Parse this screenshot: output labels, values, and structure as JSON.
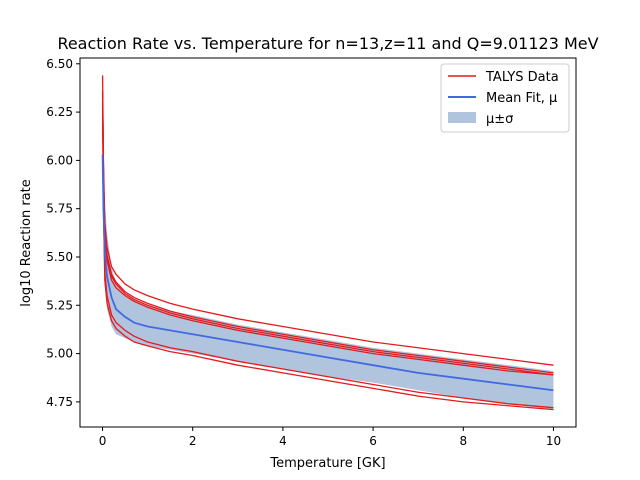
{
  "chart_data": {
    "type": "line",
    "title": "Reaction Rate vs. Temperature for n=13,z=11 and Q=9.01123 MeV",
    "xlabel": "Temperature [GK]",
    "ylabel": "log10 Reaction rate",
    "xlim": [
      -0.5,
      10.5
    ],
    "ylim": [
      4.62,
      6.53
    ],
    "xticks": [
      0,
      2,
      4,
      6,
      8,
      10
    ],
    "xtick_labels": [
      "0",
      "2",
      "4",
      "6",
      "8",
      "10"
    ],
    "yticks": [
      4.75,
      5.0,
      5.25,
      5.5,
      5.75,
      6.0,
      6.25,
      6.5
    ],
    "ytick_labels": [
      "4.75",
      "5.00",
      "5.25",
      "5.50",
      "5.75",
      "6.00",
      "6.25",
      "6.50"
    ],
    "grid": false,
    "legend_position": "top-right",
    "legend": [
      {
        "label": "TALYS Data",
        "kind": "line",
        "color": "#e41a1c"
      },
      {
        "label": "Mean Fit, μ",
        "kind": "line",
        "color": "#4169e1"
      },
      {
        "label": "μ±σ",
        "kind": "patch",
        "color": "#b0c4de"
      }
    ],
    "talys_series": [
      {
        "name": "TALYS Data 1",
        "x": [
          0.001,
          0.02,
          0.05,
          0.1,
          0.2,
          0.3,
          0.5,
          0.7,
          1,
          1.5,
          2,
          3,
          4,
          5,
          6,
          7,
          8,
          9,
          10
        ],
        "y": [
          6.44,
          6.0,
          5.68,
          5.55,
          5.45,
          5.41,
          5.36,
          5.33,
          5.3,
          5.26,
          5.23,
          5.18,
          5.14,
          5.1,
          5.06,
          5.03,
          5.0,
          4.97,
          4.94
        ]
      },
      {
        "name": "TALYS Data 2",
        "x": [
          0.001,
          0.02,
          0.05,
          0.1,
          0.2,
          0.3,
          0.5,
          0.7,
          1,
          1.5,
          2,
          3,
          4,
          5,
          6,
          7,
          8,
          9,
          10
        ],
        "y": [
          6.36,
          5.95,
          5.63,
          5.51,
          5.41,
          5.37,
          5.32,
          5.29,
          5.26,
          5.22,
          5.19,
          5.14,
          5.1,
          5.06,
          5.02,
          4.99,
          4.96,
          4.93,
          4.9
        ]
      },
      {
        "name": "TALYS Data 3",
        "x": [
          0.001,
          0.02,
          0.05,
          0.1,
          0.2,
          0.3,
          0.5,
          0.7,
          1,
          1.5,
          2,
          3,
          4,
          5,
          6,
          7,
          8,
          9,
          10
        ],
        "y": [
          6.34,
          5.94,
          5.62,
          5.5,
          5.4,
          5.36,
          5.31,
          5.28,
          5.25,
          5.21,
          5.18,
          5.13,
          5.09,
          5.05,
          5.01,
          4.98,
          4.95,
          4.92,
          4.89
        ]
      },
      {
        "name": "TALYS Data 4",
        "x": [
          0.001,
          0.02,
          0.05,
          0.1,
          0.2,
          0.3,
          0.5,
          0.7,
          1,
          1.5,
          2,
          3,
          4,
          5,
          6,
          7,
          8,
          9,
          10
        ],
        "y": [
          6.35,
          5.92,
          5.6,
          5.48,
          5.38,
          5.34,
          5.3,
          5.27,
          5.24,
          5.2,
          5.17,
          5.12,
          5.08,
          5.04,
          5.0,
          4.97,
          4.94,
          4.91,
          4.89
        ]
      },
      {
        "name": "TALYS Data 5",
        "x": [
          0.001,
          0.02,
          0.05,
          0.1,
          0.2,
          0.3,
          0.5,
          0.7,
          1,
          1.5,
          2,
          3,
          4,
          5,
          6,
          7,
          8,
          9,
          10
        ],
        "y": [
          6.3,
          5.8,
          5.42,
          5.3,
          5.2,
          5.16,
          5.12,
          5.09,
          5.06,
          5.03,
          5.01,
          4.96,
          4.92,
          4.88,
          4.84,
          4.8,
          4.77,
          4.74,
          4.72
        ]
      },
      {
        "name": "TALYS Data 6",
        "x": [
          0.001,
          0.02,
          0.05,
          0.1,
          0.2,
          0.3,
          0.5,
          0.7,
          1,
          1.5,
          2,
          3,
          4,
          5,
          6,
          7,
          8,
          9,
          10
        ],
        "y": [
          6.28,
          5.76,
          5.38,
          5.26,
          5.17,
          5.13,
          5.09,
          5.06,
          5.04,
          5.01,
          4.99,
          4.94,
          4.9,
          4.86,
          4.82,
          4.78,
          4.75,
          4.73,
          4.71
        ]
      }
    ],
    "mean_fit": {
      "name": "Mean Fit, μ",
      "x": [
        0.001,
        0.02,
        0.05,
        0.1,
        0.2,
        0.3,
        0.5,
        0.7,
        1,
        1.5,
        2,
        3,
        4,
        5,
        6,
        7,
        8,
        9,
        10
      ],
      "y": [
        6.03,
        5.75,
        5.52,
        5.4,
        5.29,
        5.23,
        5.19,
        5.16,
        5.14,
        5.12,
        5.1,
        5.06,
        5.02,
        4.98,
        4.94,
        4.9,
        4.87,
        4.84,
        4.81
      ]
    },
    "band": {
      "name": "μ±σ",
      "x": [
        0.001,
        0.02,
        0.05,
        0.1,
        0.2,
        0.3,
        0.5,
        0.7,
        1,
        1.5,
        2,
        3,
        4,
        5,
        6,
        7,
        8,
        9,
        10
      ],
      "upper": [
        6.03,
        6.0,
        5.8,
        5.62,
        5.45,
        5.36,
        5.3,
        5.28,
        5.25,
        5.22,
        5.2,
        5.15,
        5.11,
        5.07,
        5.03,
        5.0,
        4.97,
        4.94,
        4.91
      ],
      "lower": [
        6.03,
        5.6,
        5.35,
        5.23,
        5.14,
        5.1,
        5.08,
        5.06,
        5.04,
        5.02,
        5.0,
        4.96,
        4.92,
        4.88,
        4.85,
        4.81,
        4.77,
        4.74,
        4.71
      ]
    },
    "colors": {
      "talys": "#e41a1c",
      "mean": "#4169e1",
      "band": "#b0c4de"
    }
  }
}
